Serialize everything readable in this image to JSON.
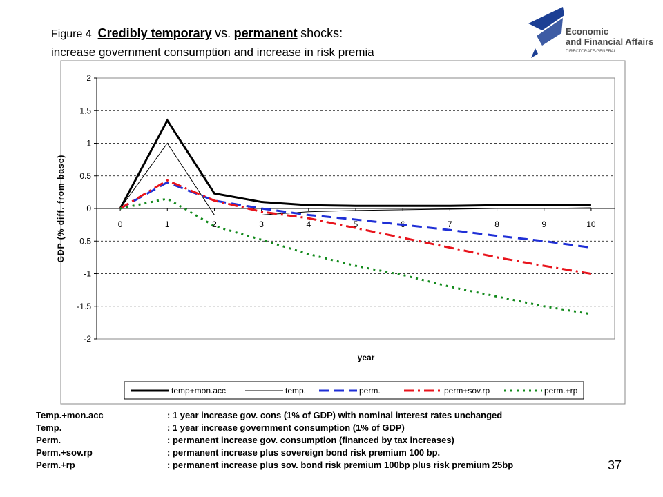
{
  "slide": {
    "figure_label": "Figure 4",
    "title_a": "Credibly temporary",
    "title_b": "vs.",
    "title_c": "permanent",
    "title_d": "shocks:",
    "title_line2": "increase government consumption and increase in risk premia",
    "logo_line1": "Economic",
    "logo_line2": "and Financial Affairs",
    "logo_line3": "DIRECTORATE-GENERAL",
    "page_number": "37"
  },
  "chart_data": {
    "type": "line",
    "x_label": "year",
    "y_label": "GDP (% diff. from base)",
    "x": [
      0,
      1,
      2,
      3,
      4,
      5,
      6,
      7,
      8,
      9,
      10
    ],
    "xlim": [
      -0.5,
      10.5
    ],
    "xticks": [
      0,
      1,
      2,
      3,
      4,
      5,
      6,
      7,
      8,
      9,
      10
    ],
    "ylim": [
      -2,
      2
    ],
    "yticks": [
      -2,
      -1.5,
      -1,
      -0.5,
      0,
      0.5,
      1,
      1.5,
      2
    ],
    "grid": true,
    "legend": "bottom",
    "series": [
      {
        "name": "temp+mon.acc",
        "color": "#000000",
        "style": "solid-thick",
        "values": [
          0,
          1.35,
          0.23,
          0.1,
          0.05,
          0.04,
          0.04,
          0.04,
          0.05,
          0.05,
          0.05
        ]
      },
      {
        "name": "temp.",
        "color": "#000000",
        "style": "solid-thin",
        "values": [
          0,
          1.0,
          -0.1,
          -0.1,
          -0.05,
          -0.03,
          -0.02,
          -0.01,
          0,
          0,
          0.01
        ]
      },
      {
        "name": "perm.",
        "color": "#1f2fd6",
        "style": "dashed",
        "values": [
          0,
          0.4,
          0.12,
          0,
          -0.1,
          -0.17,
          -0.25,
          -0.33,
          -0.42,
          -0.5,
          -0.6
        ]
      },
      {
        "name": "perm+sov.rp",
        "color": "#e8141c",
        "style": "dash-dot",
        "values": [
          0,
          0.43,
          0.12,
          -0.05,
          -0.15,
          -0.3,
          -0.45,
          -0.6,
          -0.75,
          -0.88,
          -1.0
        ]
      },
      {
        "name": "perm.+rp",
        "color": "#138a1c",
        "style": "dotted",
        "values": [
          0,
          0.15,
          -0.27,
          -0.48,
          -0.7,
          -0.88,
          -1.02,
          -1.2,
          -1.35,
          -1.5,
          -1.62
        ]
      }
    ]
  },
  "notes": {
    "rows": [
      [
        "Temp.+mon.acc",
        ": 1 year increase gov. cons (1% of GDP) with nominal interest rates unchanged"
      ],
      [
        "Temp.",
        ": 1 year increase government consumption (1% of GDP)"
      ],
      [
        "Perm.",
        ":  permanent increase gov. consumption (financed by tax increases)"
      ],
      [
        "Perm.+sov.rp",
        ":  permanent increase plus sovereign bond risk premium 100 bp."
      ],
      [
        "Perm.+rp",
        ":  permanent increase plus sov. bond risk premium 100bp plus risk premium 25bp"
      ]
    ]
  }
}
